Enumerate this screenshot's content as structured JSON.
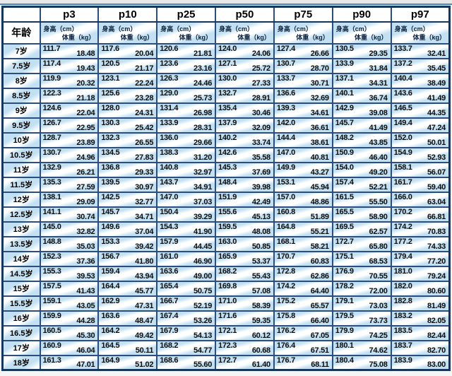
{
  "colors": {
    "cell_blue": "#c2e0f2",
    "grid_navy": "#2a4f7e",
    "outer_border_navy": "#16365c",
    "header_bg": "#ffffff",
    "text": "#111111"
  },
  "chart_data": {
    "type": "table",
    "corner_label": "",
    "age_column_header": "年龄",
    "unit_labels": {
      "height": "身高（cm）",
      "weight": "体重（kg）"
    },
    "percentiles": [
      "p3",
      "p10",
      "p25",
      "p50",
      "p75",
      "p90",
      "p97"
    ],
    "cell_format": "[height_cm, weight_kg]",
    "rows": [
      {
        "age": "7岁",
        "data": [
          [
            "111.7",
            "18.48"
          ],
          [
            "117.6",
            "20.04"
          ],
          [
            "120.6",
            "21.81"
          ],
          [
            "124.0",
            "24.06"
          ],
          [
            "127.4",
            "26.66"
          ],
          [
            "130.5",
            "29.35"
          ],
          [
            "133.7",
            "32.41"
          ]
        ]
      },
      {
        "age": "7.5岁",
        "data": [
          [
            "117.4",
            "19.43"
          ],
          [
            "120.5",
            "21.17"
          ],
          [
            "123.6",
            "23.16"
          ],
          [
            "127.1",
            "25.72"
          ],
          [
            "130.7",
            "28.70"
          ],
          [
            "133.9",
            "31.84"
          ],
          [
            "137.2",
            "35.45"
          ]
        ]
      },
      {
        "age": "8岁",
        "data": [
          [
            "119.9",
            "20.32"
          ],
          [
            "123.1",
            "22.24"
          ],
          [
            "126.3",
            "24.46"
          ],
          [
            "130.0",
            "27.33"
          ],
          [
            "133.7",
            "30.71"
          ],
          [
            "137.1",
            "34.31"
          ],
          [
            "140.4",
            "38.49"
          ]
        ]
      },
      {
        "age": "8.5岁",
        "data": [
          [
            "122.3",
            "21.18"
          ],
          [
            "125.6",
            "23.28"
          ],
          [
            "129.0",
            "25.73"
          ],
          [
            "132.7",
            "28.91"
          ],
          [
            "136.6",
            "32.69"
          ],
          [
            "140.1",
            "36.74"
          ],
          [
            "143.6",
            "41.49"
          ]
        ]
      },
      {
        "age": "9岁",
        "data": [
          [
            "124.6",
            "22.04"
          ],
          [
            "128.0",
            "24.31"
          ],
          [
            "131.4",
            "26.98"
          ],
          [
            "135.4",
            "30.46"
          ],
          [
            "139.3",
            "34.61"
          ],
          [
            "142.9",
            "39.08"
          ],
          [
            "146.5",
            "44.35"
          ]
        ]
      },
      {
        "age": "9.5岁",
        "data": [
          [
            "126.7",
            "22.95"
          ],
          [
            "130.3",
            "25.42"
          ],
          [
            "133.9",
            "28.31"
          ],
          [
            "137.9",
            "32.09"
          ],
          [
            "142.0",
            "36.61"
          ],
          [
            "145.7",
            "41.49"
          ],
          [
            "149.4",
            "47.24"
          ]
        ]
      },
      {
        "age": "10岁",
        "data": [
          [
            "128.7",
            "23.89"
          ],
          [
            "132.3",
            "26.55"
          ],
          [
            "136.0",
            "29.66"
          ],
          [
            "140.2",
            "33.74"
          ],
          [
            "144.4",
            "38.61"
          ],
          [
            "148.2",
            "43.85"
          ],
          [
            "152.0",
            "50.01"
          ]
        ]
      },
      {
        "age": "10.5岁",
        "data": [
          [
            "130.7",
            "24.96"
          ],
          [
            "134.5",
            "27.83"
          ],
          [
            "138.3",
            "31.20"
          ],
          [
            "142.6",
            "35.58"
          ],
          [
            "147.0",
            "40.81"
          ],
          [
            "150.9",
            "46.40"
          ],
          [
            "154.9",
            "52.93"
          ]
        ]
      },
      {
        "age": "11岁",
        "data": [
          [
            "132.9",
            "26.21"
          ],
          [
            "136.8",
            "29.33"
          ],
          [
            "140.8",
            "32.97"
          ],
          [
            "145.3",
            "37.69"
          ],
          [
            "149.9",
            "43.27"
          ],
          [
            "154.0",
            "49.20"
          ],
          [
            "158.1",
            "56.07"
          ]
        ]
      },
      {
        "age": "11.5岁",
        "data": [
          [
            "135.3",
            "27.59"
          ],
          [
            "139.5",
            "30.97"
          ],
          [
            "143.7",
            "34.91"
          ],
          [
            "148.4",
            "39.98"
          ],
          [
            "153.1",
            "45.94"
          ],
          [
            "157.4",
            "52.21"
          ],
          [
            "161.7",
            "59.40"
          ]
        ]
      },
      {
        "age": "12岁",
        "data": [
          [
            "138.1",
            "29.09"
          ],
          [
            "142.5",
            "32.77"
          ],
          [
            "147.0",
            "37.03"
          ],
          [
            "151.9",
            "42.49"
          ],
          [
            "157.0",
            "48.86"
          ],
          [
            "161.5",
            "55.50"
          ],
          [
            "166.0",
            "63.04"
          ]
        ]
      },
      {
        "age": "12.5岁",
        "data": [
          [
            "141.1",
            "30.74"
          ],
          [
            "145.7",
            "34.71"
          ],
          [
            "150.4",
            "39.29"
          ],
          [
            "155.6",
            "45.13"
          ],
          [
            "160.8",
            "51.89"
          ],
          [
            "165.5",
            "58.90"
          ],
          [
            "170.2",
            "66.81"
          ]
        ]
      },
      {
        "age": "13岁",
        "data": [
          [
            "145.0",
            "32.82"
          ],
          [
            "149.6",
            "37.04"
          ],
          [
            "154.3",
            "41.90"
          ],
          [
            "159.5",
            "48.08"
          ],
          [
            "164.8",
            "55.21"
          ],
          [
            "169.5",
            "62.57"
          ],
          [
            "174.2",
            "70.83"
          ]
        ]
      },
      {
        "age": "13.5岁",
        "data": [
          [
            "148.8",
            "35.03"
          ],
          [
            "153.3",
            "39.42"
          ],
          [
            "157.9",
            "44.45"
          ],
          [
            "163.0",
            "50.85"
          ],
          [
            "168.1",
            "58.21"
          ],
          [
            "172.7",
            "65.80"
          ],
          [
            "177.2",
            "74.33"
          ]
        ]
      },
      {
        "age": "14岁",
        "data": [
          [
            "152.3",
            "37.36"
          ],
          [
            "156.7",
            "41.80"
          ],
          [
            "161.0",
            "46.90"
          ],
          [
            "165.9",
            "53.37"
          ],
          [
            "170.7",
            "60.83"
          ],
          [
            "175.1",
            "68.53"
          ],
          [
            "179.4",
            "77.20"
          ]
        ]
      },
      {
        "age": "14.5岁",
        "data": [
          [
            "155.3",
            "39.53"
          ],
          [
            "159.4",
            "43.94"
          ],
          [
            "163.6",
            "49.00"
          ],
          [
            "168.2",
            "55.43"
          ],
          [
            "172.8",
            "62.86"
          ],
          [
            "176.9",
            "70.55"
          ],
          [
            "181.0",
            "79.24"
          ]
        ]
      },
      {
        "age": "15岁",
        "data": [
          [
            "157.5",
            "41.43"
          ],
          [
            "164.4",
            "45.77"
          ],
          [
            "165.4",
            "50.75"
          ],
          [
            "169.8",
            "57.08"
          ],
          [
            "174.2",
            "64.40"
          ],
          [
            "178.2",
            "72.00"
          ],
          [
            "182.0",
            "80.60"
          ]
        ]
      },
      {
        "age": "15.5岁",
        "data": [
          [
            "159.1",
            "43.05"
          ],
          [
            "162.9",
            "47.31"
          ],
          [
            "166.7",
            "52.19"
          ],
          [
            "171.0",
            "58.39"
          ],
          [
            "175.2",
            "65.57"
          ],
          [
            "179.1",
            "73.03"
          ],
          [
            "182.8",
            "81.49"
          ]
        ]
      },
      {
        "age": "16岁",
        "data": [
          [
            "159.9",
            "44.28"
          ],
          [
            "163.6",
            "48.47"
          ],
          [
            "167.4",
            "53.26"
          ],
          [
            "171.6",
            "59.35"
          ],
          [
            "175.8",
            "66.40"
          ],
          [
            "179.5",
            "73.73"
          ],
          [
            "183.2",
            "82.05"
          ]
        ]
      },
      {
        "age": "16.5岁",
        "data": [
          [
            "160.5",
            "45.30"
          ],
          [
            "164.2",
            "49.42"
          ],
          [
            "167.9",
            "54.13"
          ],
          [
            "172.1",
            "60.12"
          ],
          [
            "176.2",
            "67.05"
          ],
          [
            "179.9",
            "74.25"
          ],
          [
            "183.5",
            "82.44"
          ]
        ]
      },
      {
        "age": "17岁",
        "data": [
          [
            "160.9",
            "46.04"
          ],
          [
            "164.5",
            "50.11"
          ],
          [
            "168.2",
            "54.77"
          ],
          [
            "172.3",
            "60.68"
          ],
          [
            "176.4",
            "67.51"
          ],
          [
            "180.1",
            "74.62"
          ],
          [
            "183.7",
            "82.70"
          ]
        ]
      },
      {
        "age": "18岁",
        "data": [
          [
            "161.3",
            "47.01"
          ],
          [
            "164.9",
            "51.02"
          ],
          [
            "168.6",
            "55.60"
          ],
          [
            "172.7",
            "61.40"
          ],
          [
            "176.7",
            "68.11"
          ],
          [
            "180.4",
            "75.08"
          ],
          [
            "183.9",
            "83.00"
          ]
        ]
      }
    ]
  }
}
